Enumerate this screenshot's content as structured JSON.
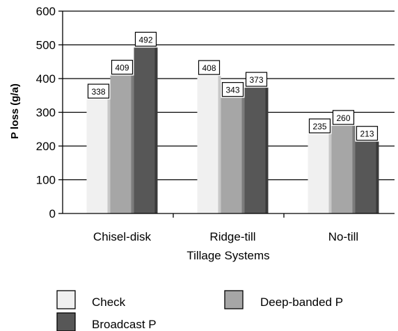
{
  "chart_data": {
    "type": "bar",
    "categories": [
      "Chisel-disk",
      "Ridge-till",
      "No-till"
    ],
    "series": [
      {
        "name": "Check",
        "values": [
          338,
          408,
          235
        ],
        "color": "#f0f0f0",
        "shadow": "#c8c8c8"
      },
      {
        "name": "Deep-banded P",
        "values": [
          409,
          343,
          260
        ],
        "color": "#a6a6a6",
        "shadow": "#7c7c7c"
      },
      {
        "name": "Broadcast P",
        "values": [
          492,
          373,
          213
        ],
        "color": "#575757",
        "shadow": "#3a3a3a"
      }
    ],
    "xlabel": "Tillage Systems",
    "ylabel": "P loss (g/a)",
    "ylim": [
      0,
      600
    ],
    "yticks": [
      0,
      100,
      200,
      300,
      400,
      500,
      600
    ],
    "grid": true,
    "legend_position": "bottom"
  }
}
